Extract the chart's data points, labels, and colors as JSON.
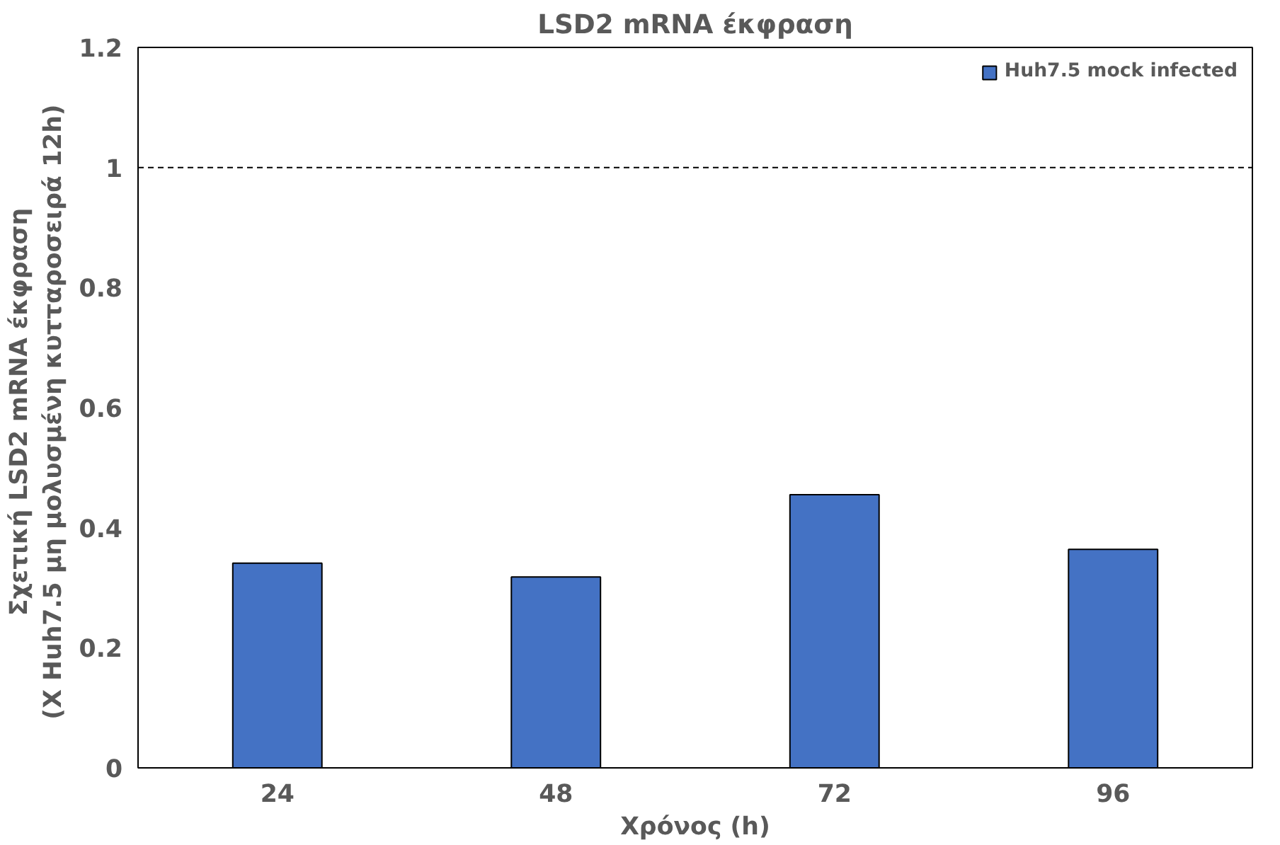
{
  "chart_data": {
    "type": "bar",
    "title": "LSD2 mRNA έκφραση",
    "xlabel": "Χρόνος (h)",
    "ylabel": "Σχετική LSD2 mRNA  έκφραση\n(Χ Huh7.5 μη μολυσμένη κυτταροσειρά  12h)",
    "categories": [
      "24",
      "48",
      "72",
      "96"
    ],
    "series": [
      {
        "name": "Huh7.5 mock infected",
        "color": "#4472c4",
        "values": [
          0.341,
          0.318,
          0.455,
          0.364
        ]
      }
    ],
    "ylim": [
      0,
      1.2
    ],
    "yticks": [
      0,
      0.2,
      0.4,
      0.6,
      0.8,
      1,
      1.2
    ],
    "ref_lines": [
      {
        "axis": "y",
        "value": 1,
        "label": null,
        "line_style": "dashed",
        "color": "#000000"
      }
    ],
    "grid": false,
    "legend": "top right"
  }
}
